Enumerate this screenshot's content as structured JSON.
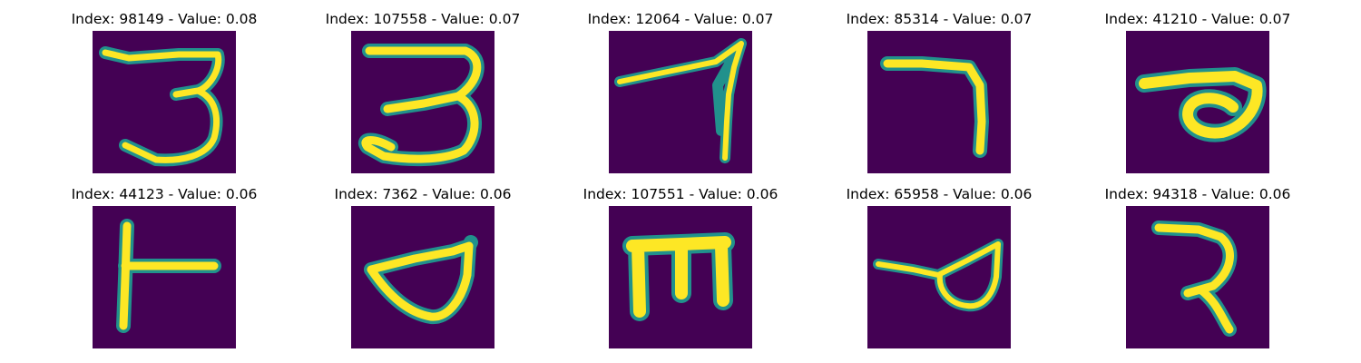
{
  "colors": {
    "background": "#440154",
    "stroke_core": "#fde725",
    "stroke_mid": "#5ec962",
    "stroke_edge": "#21918c"
  },
  "panels": [
    {
      "title": "Index: 98149 - Value: 0.08"
    },
    {
      "title": "Index: 107558 - Value: 0.07"
    },
    {
      "title": "Index: 12064 - Value: 0.07"
    },
    {
      "title": "Index: 85314 - Value: 0.07"
    },
    {
      "title": "Index: 41210 - Value: 0.07"
    },
    {
      "title": "Index: 44123 - Value: 0.06"
    },
    {
      "title": "Index: 7362 - Value: 0.06"
    },
    {
      "title": "Index: 107551 - Value: 0.06"
    },
    {
      "title": "Index: 65958 - Value: 0.06"
    },
    {
      "title": "Index: 94318 - Value: 0.06"
    }
  ]
}
